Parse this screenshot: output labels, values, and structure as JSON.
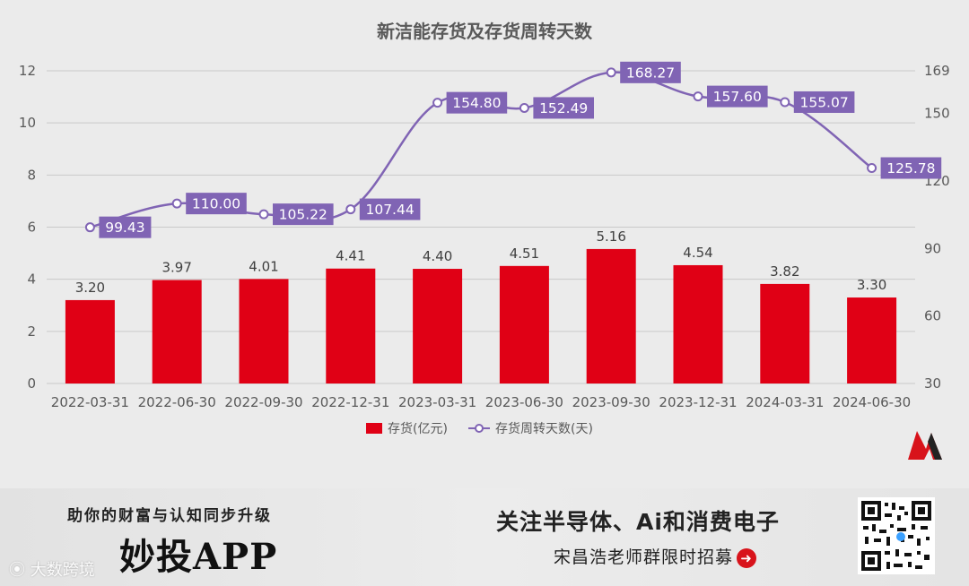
{
  "chart_data": {
    "type": "bar+line",
    "title": "新洁能存货及存货周转天数",
    "categories": [
      "2022-03-31",
      "2022-06-30",
      "2022-09-30",
      "2022-12-31",
      "2023-03-31",
      "2023-06-30",
      "2023-09-30",
      "2023-12-31",
      "2024-03-31",
      "2024-06-30"
    ],
    "series": [
      {
        "name": "存货(亿元)",
        "type": "bar",
        "axis": "left",
        "color": "#e00015",
        "values": [
          3.2,
          3.97,
          4.01,
          4.41,
          4.4,
          4.51,
          5.16,
          4.54,
          3.82,
          3.3
        ],
        "labels": [
          "3.20",
          "3.97",
          "4.01",
          "4.41",
          "4.40",
          "4.51",
          "5.16",
          "4.54",
          "3.82",
          "3.30"
        ]
      },
      {
        "name": "存货周转天数(天)",
        "type": "line",
        "axis": "right",
        "color": "#8064b4",
        "values": [
          99.43,
          110.0,
          105.22,
          107.44,
          154.8,
          152.49,
          168.27,
          157.6,
          155.07,
          125.78
        ],
        "labels": [
          "99.43",
          "110.00",
          "105.22",
          "107.44",
          "154.80",
          "152.49",
          "168.27",
          "157.60",
          "155.07",
          "125.78"
        ]
      }
    ],
    "ylim_left": [
      0,
      12
    ],
    "yticks_left": [
      "0",
      "2",
      "4",
      "6",
      "8",
      "10",
      "12"
    ],
    "ylim_right": [
      30,
      169
    ],
    "yticks_right": [
      "30",
      "60",
      "90",
      "120",
      "150",
      "169"
    ],
    "yticks_right_values": [
      30,
      60,
      90,
      120,
      150,
      169
    ],
    "legend_position": "bottom-center",
    "grid": true
  },
  "banner": {
    "left_top": "助你的财富与认知同步升级",
    "app_name": "妙投APP",
    "right_top": "关注半导体、Ai和消费电子",
    "right_bottom": "宋昌浩老师群限时招募",
    "watermark": "大数跨境"
  },
  "colors": {
    "bar": "#e00015",
    "line": "#8064b4",
    "grid": "#c8c8c8",
    "text": "#595959"
  }
}
